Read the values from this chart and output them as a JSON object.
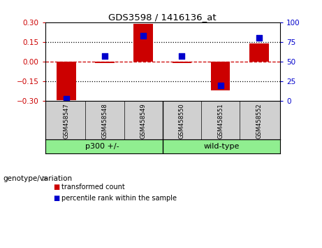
{
  "title": "GDS3598 / 1416136_at",
  "samples": [
    "GSM458547",
    "GSM458548",
    "GSM458549",
    "GSM458550",
    "GSM458551",
    "GSM458552"
  ],
  "transformed_count": [
    -0.295,
    -0.008,
    0.29,
    -0.008,
    -0.22,
    0.14
  ],
  "percentile_rank": [
    3,
    57,
    83,
    57,
    20,
    80
  ],
  "group_boundary": 2.5,
  "ylim_left": [
    -0.3,
    0.3
  ],
  "ylim_right": [
    0,
    100
  ],
  "yticks_left": [
    -0.3,
    -0.15,
    0.0,
    0.15,
    0.3
  ],
  "yticks_right": [
    0,
    25,
    50,
    75,
    100
  ],
  "hlines_dotted": [
    -0.15,
    0.15
  ],
  "bar_color_red": "#CC0000",
  "bar_color_blue": "#0000CC",
  "bar_width": 0.5,
  "blue_marker_size": 30,
  "legend_red_label": "transformed count",
  "legend_blue_label": "percentile rank within the sample",
  "group_label_text": "genotype/variation",
  "group1_label": "p300 +/-",
  "group2_label": "wild-type",
  "left_tick_color": "#CC0000",
  "right_tick_color": "#0000CC",
  "zero_line_color": "#CC0000",
  "dotted_line_color": "black",
  "background_color": "#ffffff",
  "plot_bg_color": "#ffffff",
  "gray_bg": "#d0d0d0",
  "green_bg": "#90EE90"
}
